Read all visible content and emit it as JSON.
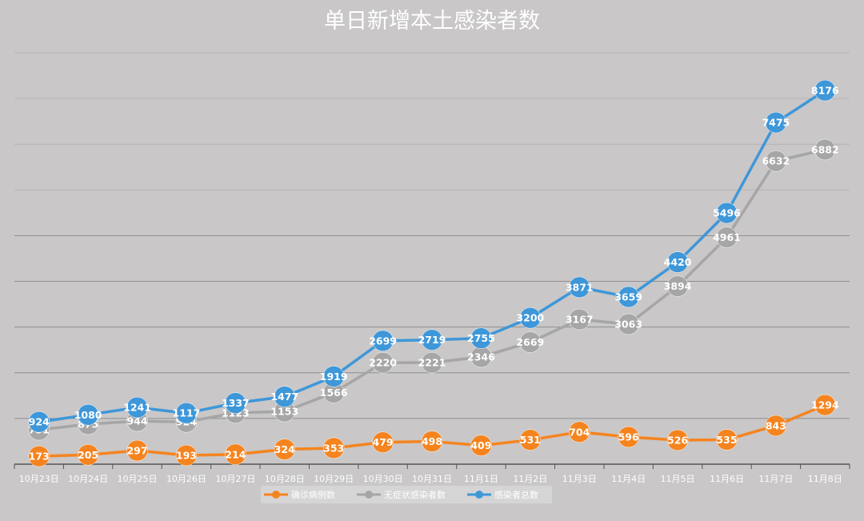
{
  "chart_data": {
    "type": "line",
    "title": "单日新增本土感染者数",
    "xlabel": "",
    "ylabel": "",
    "categories": [
      "10月23日",
      "10月24日",
      "10月25日",
      "10月26日",
      "10月27日",
      "10月28日",
      "10月29日",
      "10月30日",
      "10月31日",
      "11月1日",
      "11月2日",
      "11月3日",
      "11月4日",
      "11月5日",
      "11月6日",
      "11月7日",
      "11月8日"
    ],
    "series": [
      {
        "name": "确诊病例数",
        "color": "#f5841f",
        "values": [
          173,
          205,
          297,
          193,
          214,
          324,
          353,
          479,
          498,
          409,
          531,
          704,
          596,
          526,
          535,
          843,
          1294
        ]
      },
      {
        "name": "无症状感染者数",
        "color": "#a6a6a6",
        "values": [
          751,
          875,
          944,
          924,
          1123,
          1153,
          1566,
          2220,
          2221,
          2346,
          2669,
          3167,
          3063,
          3894,
          4961,
          6632,
          6882
        ]
      },
      {
        "name": "感染者总数",
        "color": "#3e97d9",
        "values": [
          924,
          1080,
          1241,
          1117,
          1337,
          1477,
          1919,
          2699,
          2719,
          2755,
          3200,
          3871,
          3659,
          4420,
          5496,
          7475,
          8176
        ]
      }
    ],
    "ylim": [
      0,
      9000
    ],
    "grid": true,
    "legend_position": "bottom-center"
  }
}
